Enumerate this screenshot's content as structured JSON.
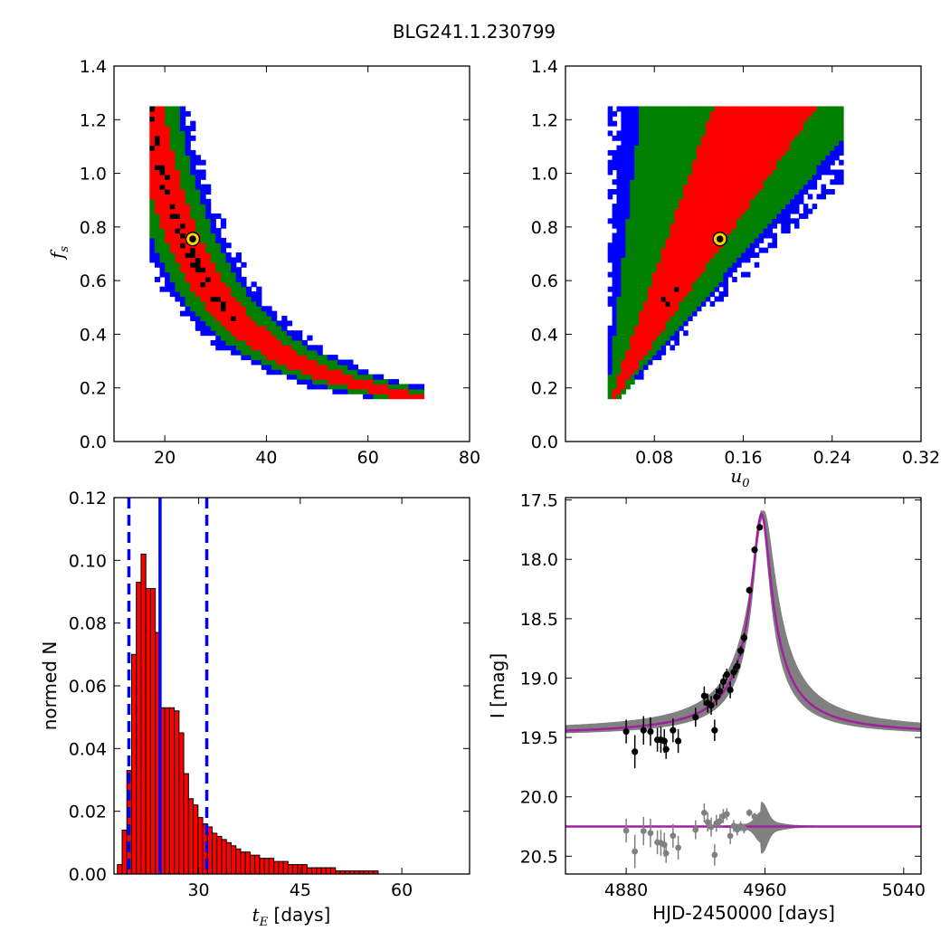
{
  "figure": {
    "title": "BLG241.1.230799"
  },
  "chart_data": [
    {
      "type": "heatmap",
      "panel": "fs-vs-tE",
      "xlabel": "",
      "ylabel": "f_s",
      "ylabel_parts": {
        "base": "f",
        "sub": "s"
      },
      "xlim": [
        10,
        80
      ],
      "ylim": [
        0.0,
        1.4
      ],
      "xticks": [
        20,
        40,
        60,
        80
      ],
      "yticks": [
        0.0,
        0.2,
        0.4,
        0.6,
        0.8,
        1.0,
        1.2,
        1.4
      ],
      "ytick_labels": [
        "0.0",
        "0.2",
        "0.4",
        "0.6",
        "0.8",
        "1.0",
        "1.2",
        "1.4"
      ],
      "best_fit": {
        "x": 25.5,
        "y": 0.755
      },
      "colors": {
        "sigma3": "#0000ff",
        "sigma2": "#007f00",
        "sigma1": "#ff0000",
        "peak": "#000000",
        "marker_ring": "#ffd700"
      }
    },
    {
      "type": "heatmap",
      "panel": "fs-vs-u0",
      "xlabel": "u_0",
      "xlabel_parts": {
        "base": "u",
        "sub": "0"
      },
      "ylabel": "",
      "xlim": [
        0.0,
        0.32
      ],
      "ylim": [
        0.0,
        1.4
      ],
      "xticks": [
        0.08,
        0.16,
        0.24,
        0.32
      ],
      "xtick_labels": [
        "0.08",
        "0.16",
        "0.24",
        "0.32"
      ],
      "yticks": [
        0.0,
        0.2,
        0.4,
        0.6,
        0.8,
        1.0,
        1.2,
        1.4
      ],
      "ytick_labels": [
        "0.0",
        "0.2",
        "0.4",
        "0.6",
        "0.8",
        "1.0",
        "1.2",
        "1.4"
      ],
      "best_fit": {
        "x": 0.139,
        "y": 0.755
      },
      "colors": {
        "sigma3": "#0000ff",
        "sigma2": "#007f00",
        "sigma1": "#ff0000",
        "peak": "#000000",
        "marker_ring": "#ffd700"
      }
    },
    {
      "type": "bar",
      "panel": "tE-histogram",
      "xlabel_parts": {
        "math_base": "t",
        "math_sub": "E",
        "text": " [days]"
      },
      "ylabel": "normed N",
      "xlim": [
        17.5,
        70
      ],
      "ylim": [
        0.0,
        0.12
      ],
      "xticks": [
        30,
        45,
        60
      ],
      "yticks": [
        0.0,
        0.02,
        0.04,
        0.06,
        0.08,
        0.1,
        0.12
      ],
      "ytick_labels": [
        "0.00",
        "0.02",
        "0.04",
        "0.06",
        "0.08",
        "0.10",
        "0.12"
      ],
      "bin_start": 18.0,
      "bin_width": 0.7,
      "values": [
        0.003,
        0.014,
        0.033,
        0.07,
        0.093,
        0.102,
        0.091,
        0.091,
        0.077,
        0.053,
        0.053,
        0.053,
        0.052,
        0.045,
        0.032,
        0.024,
        0.022,
        0.018,
        0.016,
        0.015,
        0.013,
        0.012,
        0.011,
        0.01,
        0.009,
        0.008,
        0.007,
        0.007,
        0.006,
        0.006,
        0.005,
        0.005,
        0.005,
        0.004,
        0.004,
        0.004,
        0.003,
        0.003,
        0.003,
        0.003,
        0.002,
        0.002,
        0.002,
        0.002,
        0.002,
        0.002,
        0.001,
        0.001,
        0.001,
        0.001,
        0.001,
        0.001,
        0.001,
        0.001,
        0.001
      ],
      "median": 24.3,
      "lower_bound": 19.7,
      "upper_bound": 31.2,
      "colors": {
        "bar": "#ff0000",
        "edge": "#000000",
        "lines": "#0000ff"
      }
    },
    {
      "type": "scatter",
      "panel": "light-curve",
      "xlabel": "HJD-2450000 [days]",
      "ylabel": "I [mag]",
      "xlim": [
        4845,
        5050
      ],
      "ylim": [
        20.65,
        17.48
      ],
      "xticks": [
        4880,
        4960,
        5040
      ],
      "yticks": [
        17.5,
        18.0,
        18.5,
        19.0,
        19.5,
        20.0,
        20.5
      ],
      "ytick_labels": [
        "17.5",
        "18.0",
        "18.5",
        "19.0",
        "19.5",
        "20.0",
        "20.5"
      ],
      "model": {
        "baseline": 19.48,
        "peak_mag": 17.62,
        "t0": 4958,
        "tE": 10,
        "u0_shape": 0.22,
        "residual_zero": 20.25
      },
      "data": {
        "t": [
          4880,
          4885,
          4890,
          4894,
          4898,
          4900,
          4902,
          4903,
          4907,
          4910,
          4920,
          4925,
          4927,
          4929,
          4931,
          4932,
          4934,
          4936,
          4938,
          4940,
          4942,
          4944,
          4946,
          4948,
          4951,
          4954,
          4957
        ],
        "mag": [
          19.45,
          19.62,
          19.44,
          19.45,
          19.52,
          19.52,
          19.53,
          19.6,
          19.44,
          19.53,
          19.33,
          19.15,
          19.21,
          19.23,
          19.44,
          19.16,
          19.11,
          19.03,
          18.97,
          19.1,
          18.95,
          18.9,
          18.77,
          18.66,
          18.26,
          17.92,
          17.73
        ],
        "err": [
          0.1,
          0.14,
          0.12,
          0.12,
          0.1,
          0.11,
          0.1,
          0.08,
          0.1,
          0.1,
          0.08,
          0.08,
          0.08,
          0.08,
          0.09,
          0.07,
          0.06,
          0.06,
          0.05,
          0.07,
          0.05,
          0.05,
          0.04,
          0.04,
          0.03,
          0.03,
          0.02
        ]
      },
      "colors": {
        "data": "#000000",
        "model": "#a020a0",
        "band": "#808080",
        "residuals": "#808080"
      }
    }
  ]
}
